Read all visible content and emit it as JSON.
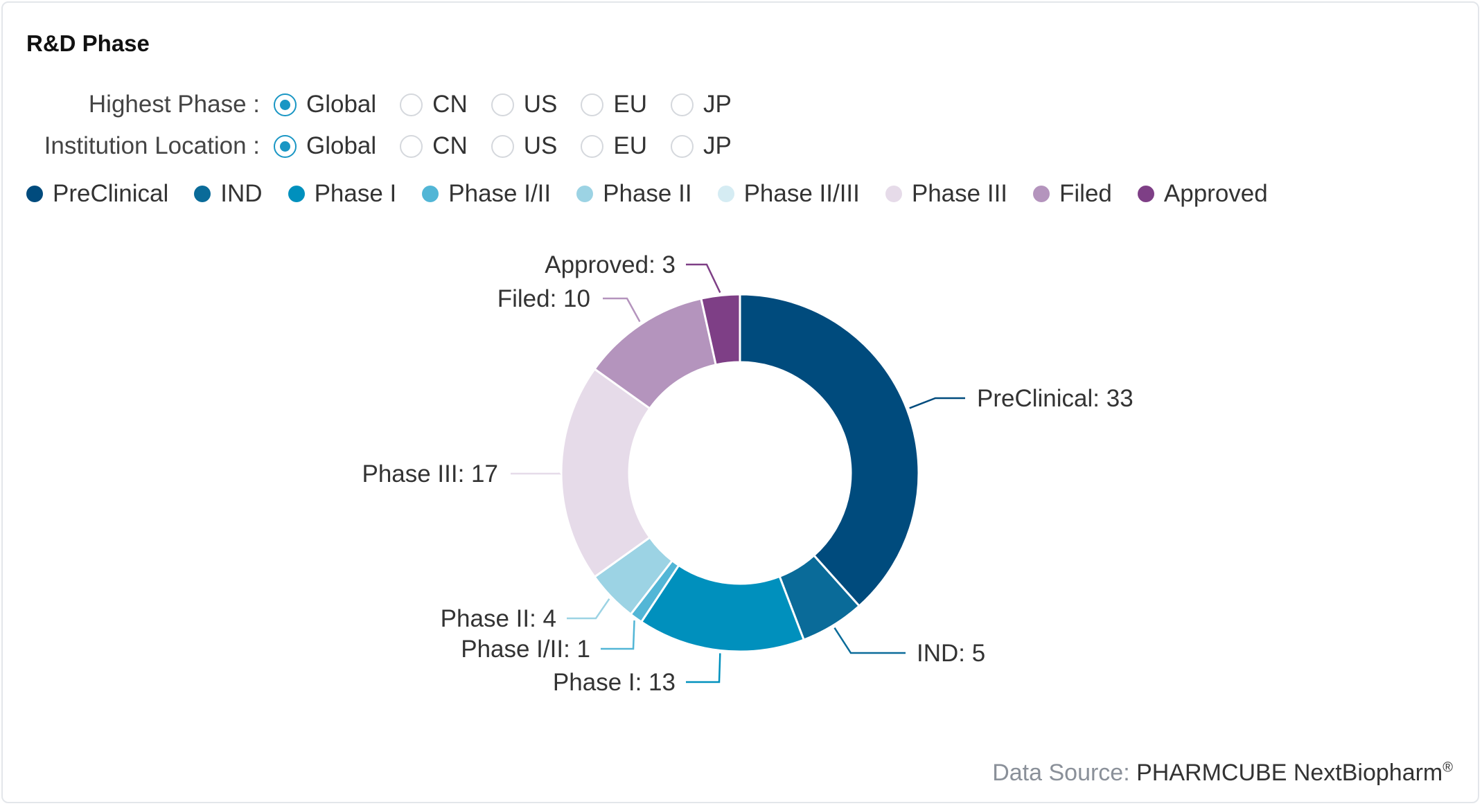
{
  "title": "R&D Phase",
  "filters": [
    {
      "label": "Highest Phase :",
      "options": [
        "Global",
        "CN",
        "US",
        "EU",
        "JP"
      ],
      "selected": "Global"
    },
    {
      "label": "Institution Location :",
      "options": [
        "Global",
        "CN",
        "US",
        "EU",
        "JP"
      ],
      "selected": "Global"
    }
  ],
  "footer": {
    "source_label": "Data Source:",
    "source_name": "PHARMCUBE NextBiopharm",
    "mark": "®"
  },
  "chart_data": {
    "type": "pie",
    "style": "donut",
    "legend_position": "top-left",
    "categories": [
      "PreClinical",
      "IND",
      "Phase I",
      "Phase I/II",
      "Phase II",
      "Phase II/III",
      "Phase III",
      "Filed",
      "Approved"
    ],
    "values": [
      33,
      5,
      13,
      1,
      4,
      0,
      17,
      10,
      3
    ],
    "colors": [
      "#004b7d",
      "#0a6b99",
      "#0090bd",
      "#52b6d6",
      "#9cd3e4",
      "#d5ecf3",
      "#e6dbe9",
      "#b494bd",
      "#7e3f86"
    ],
    "data_labels": [
      "PreClinical: 33",
      "IND: 5",
      "Phase I: 13",
      "Phase I/II: 1",
      "Phase II: 4",
      "",
      "Phase III: 17",
      "Filed: 10",
      "Approved: 3"
    ]
  }
}
